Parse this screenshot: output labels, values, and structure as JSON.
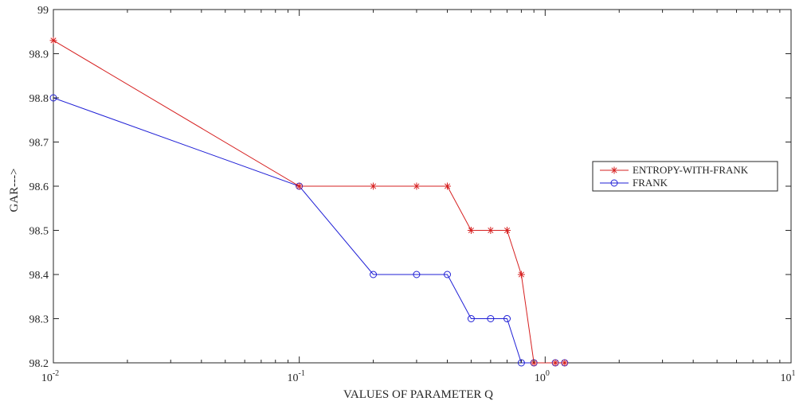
{
  "chart_data": {
    "type": "line",
    "xscale": "log",
    "xlim": [
      0.01,
      10
    ],
    "ylim": [
      98.2,
      99
    ],
    "xlabel": "VALUES OF PARAMETER Q",
    "ylabel": "GAR--->",
    "x_ticks": [
      {
        "value": 0.01,
        "base": "10",
        "exp": "-2"
      },
      {
        "value": 0.1,
        "base": "10",
        "exp": "-1"
      },
      {
        "value": 1,
        "base": "10",
        "exp": "0"
      },
      {
        "value": 10,
        "base": "10",
        "exp": "1"
      }
    ],
    "y_ticks": [
      "98.2",
      "98.3",
      "98.4",
      "98.5",
      "98.6",
      "98.7",
      "98.8",
      "98.9",
      "99"
    ],
    "grid": false,
    "legend_position": "right",
    "series": [
      {
        "name": "ENTROPY-WITH-FRANK",
        "color": "#d62020",
        "marker": "asterisk",
        "x": [
          0.01,
          0.1,
          0.2,
          0.3,
          0.4,
          0.5,
          0.6,
          0.7,
          0.8,
          0.9,
          1.1,
          1.2
        ],
        "y": [
          98.93,
          98.6,
          98.6,
          98.6,
          98.6,
          98.5,
          98.5,
          98.5,
          98.4,
          98.2,
          98.2,
          98.2
        ]
      },
      {
        "name": "FRANK",
        "color": "#1f1fd6",
        "marker": "circle",
        "x": [
          0.01,
          0.1,
          0.2,
          0.3,
          0.4,
          0.5,
          0.6,
          0.7,
          0.8,
          0.9,
          1.1,
          1.2
        ],
        "y": [
          98.8,
          98.6,
          98.4,
          98.4,
          98.4,
          98.3,
          98.3,
          98.3,
          98.2,
          98.2,
          98.2,
          98.2
        ]
      }
    ]
  }
}
